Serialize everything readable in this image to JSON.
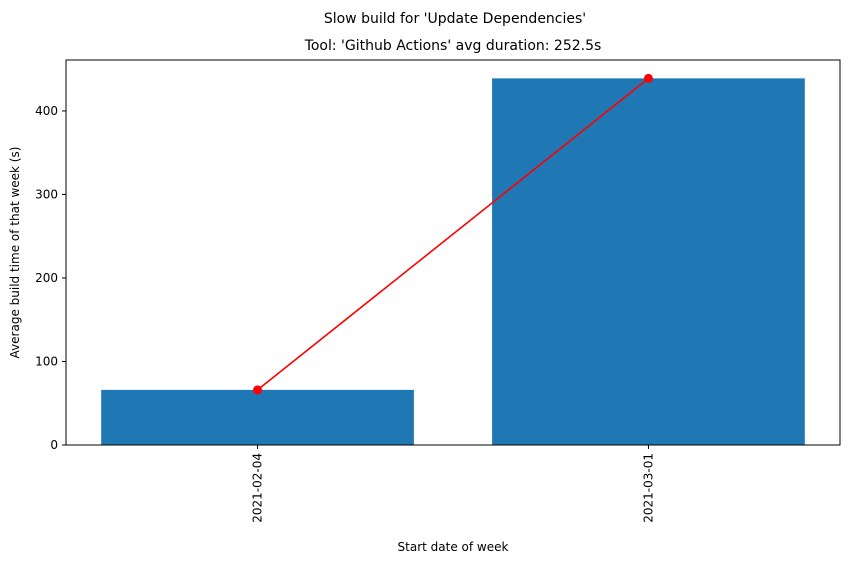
{
  "chart_data": {
    "type": "bar",
    "suptitle": "Slow build for 'Update Dependencies'",
    "title": "Tool: 'Github Actions' avg duration: 252.5s",
    "xlabel": "Start date of week",
    "ylabel": "Average build time of that week (s)",
    "categories": [
      "2021-02-04",
      "2021-03-01"
    ],
    "values": [
      66,
      439
    ],
    "ylim": [
      0,
      461
    ],
    "yticks": [
      0,
      100,
      200,
      300,
      400
    ],
    "bar_color": "#1f77b4",
    "line_color": "#ff0000",
    "grid": false,
    "legend": "none"
  }
}
